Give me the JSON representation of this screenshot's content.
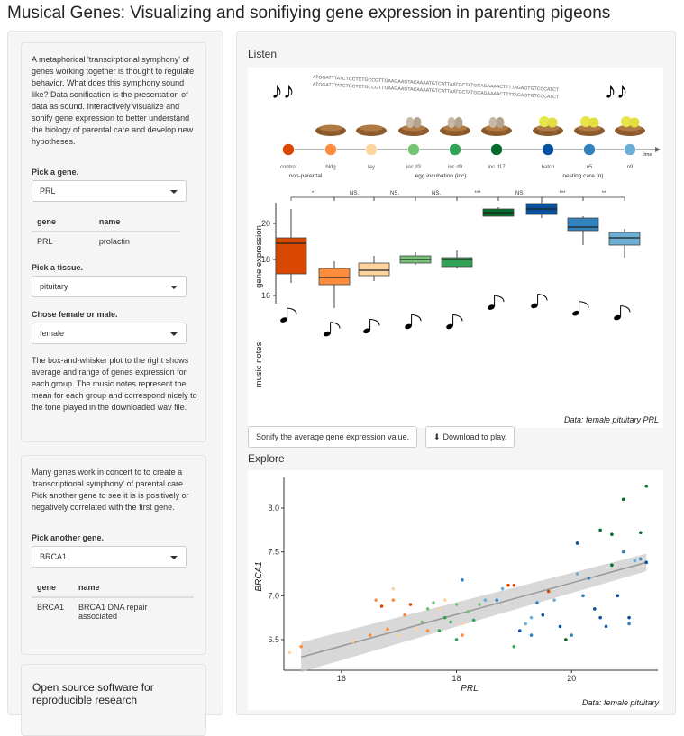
{
  "title": "Musical Genes: Visualizing and sonifiying gene expression in parenting pigeons",
  "sidebar": {
    "intro": "A metaphorical 'transcirptional symphony' of genes working together is thought to regulate behavior. What does this symphony sound like? Data sonification is the presentation of data as sound. Interactively visualize and sonify gene expression to better understand the biology of parental care and develop new hypotheses.",
    "gene_label": "Pick a gene.",
    "gene_value": "PRL",
    "gene_table": {
      "col_gene": "gene",
      "col_name": "name",
      "gene": "PRL",
      "name": "prolactin"
    },
    "tissue_label": "Pick a tissue.",
    "tissue_value": "pituitary",
    "sex_label": "Chose female or male.",
    "sex_value": "female",
    "description": "The box-and-whisker plot to the right shows average and range of genes expression for each group. The music notes represent the mean for each group and correspond nicely to the tone played in the downloaded wav file.",
    "second_intro": "Many genes work in concert to to create a 'transcriptional symphony' of parental care. Pick another gene to see it is is positively or negatively correlated with the first gene.",
    "another_label": "Pick another gene.",
    "another_value": "BRCA1",
    "another_table": {
      "col_gene": "gene",
      "col_name": "name",
      "gene": "BRCA1",
      "name": "BRCA1 DNA repair associated"
    },
    "open_source": "Open source software for reproducible research"
  },
  "main": {
    "listen_heading": "Listen",
    "sonify_button": "Sonify the average gene expression value.",
    "download_button": "Download to play.",
    "explore_heading": "Explore"
  },
  "timeline": {
    "dna_top": "ATGGATTTATCTGCTCTGCCGTTGAAGAAGTACAAAATGTCATTAATGCTATGCAGAAAACTTTTAGAGTGTCCCATCT",
    "dna_bottom": "ATGGATTTATCTGCTCTGCCGTTGAAGAAGTACAAAATGTCATTAATGCTATGCAGAAAACTTTTAGAGTGTCCCATCT",
    "stages": [
      "control",
      "bldg",
      "lay",
      "inc.d3",
      "inc.d9",
      "inc.d17",
      "hatch",
      "n5",
      "n9"
    ],
    "colors": [
      "#d94801",
      "#fd8d3c",
      "#fdd49e",
      "#74c476",
      "#31a354",
      "#006d2c",
      "#08519c",
      "#3182bd",
      "#6baed6"
    ],
    "phases": [
      "non-parental",
      "egg incubation (inc)",
      "nesting care (n)"
    ],
    "time_label": "time"
  },
  "boxplot": {
    "ylabel": "gene expression",
    "notes_label": "music notes",
    "caption": "Data: female pituitary PRL",
    "yticks": [
      16,
      18,
      20
    ],
    "sig": [
      "*",
      "NS.",
      "NS.",
      "NS.",
      "***",
      "NS.",
      "***",
      "**"
    ],
    "stats": [
      {
        "q1": 17.2,
        "med": 18.9,
        "q3": 19.2,
        "lo": 16.7,
        "hi": 20.8
      },
      {
        "q1": 16.6,
        "med": 17.0,
        "q3": 17.5,
        "lo": 15.3,
        "hi": 17.9
      },
      {
        "q1": 17.1,
        "med": 17.4,
        "q3": 17.8,
        "lo": 16.8,
        "hi": 18.2
      },
      {
        "q1": 17.8,
        "med": 18.0,
        "q3": 18.2,
        "lo": 17.7,
        "hi": 18.4
      },
      {
        "q1": 17.6,
        "med": 18.0,
        "q3": 18.1,
        "lo": 17.5,
        "hi": 18.5
      },
      {
        "q1": 20.4,
        "med": 20.6,
        "q3": 20.8,
        "lo": 20.4,
        "hi": 20.9
      },
      {
        "q1": 20.5,
        "med": 20.8,
        "q3": 21.1,
        "lo": 20.3,
        "hi": 21.3
      },
      {
        "q1": 19.6,
        "med": 19.8,
        "q3": 20.3,
        "lo": 18.8,
        "hi": 20.4
      },
      {
        "q1": 18.8,
        "med": 19.2,
        "q3": 19.5,
        "lo": 18.1,
        "hi": 19.7
      }
    ]
  },
  "chart_data": {
    "type": "scatter",
    "xlabel": "PRL",
    "ylabel": "BRCA1",
    "caption": "Data: female pituitary",
    "xlim": [
      15,
      21.5
    ],
    "ylim": [
      6.15,
      8.35
    ],
    "xticks": [
      16,
      18,
      20
    ],
    "yticks": [
      6.5,
      7.0,
      7.5,
      8.0
    ],
    "trend": {
      "x0": 15.3,
      "y0": 6.3,
      "x1": 21.3,
      "y1": 7.38
    },
    "points": [
      {
        "x": 15.1,
        "y": 6.35,
        "g": 2
      },
      {
        "x": 15.3,
        "y": 6.42,
        "g": 1
      },
      {
        "x": 16.2,
        "y": 6.48,
        "g": 2
      },
      {
        "x": 16.5,
        "y": 6.55,
        "g": 1
      },
      {
        "x": 16.6,
        "y": 6.95,
        "g": 1
      },
      {
        "x": 16.8,
        "y": 6.62,
        "g": 1
      },
      {
        "x": 16.7,
        "y": 6.88,
        "g": 0
      },
      {
        "x": 16.9,
        "y": 7.08,
        "g": 2
      },
      {
        "x": 16.9,
        "y": 6.95,
        "g": 1
      },
      {
        "x": 17.0,
        "y": 6.55,
        "g": 2
      },
      {
        "x": 17.1,
        "y": 6.78,
        "g": 1
      },
      {
        "x": 17.2,
        "y": 6.9,
        "g": 0
      },
      {
        "x": 17.3,
        "y": 6.62,
        "g": 2
      },
      {
        "x": 17.4,
        "y": 6.7,
        "g": 3
      },
      {
        "x": 17.5,
        "y": 6.85,
        "g": 3
      },
      {
        "x": 17.6,
        "y": 6.92,
        "g": 3
      },
      {
        "x": 17.7,
        "y": 6.85,
        "g": 2
      },
      {
        "x": 17.7,
        "y": 6.6,
        "g": 4
      },
      {
        "x": 17.8,
        "y": 6.75,
        "g": 4
      },
      {
        "x": 17.9,
        "y": 6.7,
        "g": 4
      },
      {
        "x": 18.0,
        "y": 6.9,
        "g": 3
      },
      {
        "x": 18.1,
        "y": 6.68,
        "g": 2
      },
      {
        "x": 18.1,
        "y": 6.55,
        "g": 1
      },
      {
        "x": 18.2,
        "y": 6.82,
        "g": 3
      },
      {
        "x": 18.0,
        "y": 6.5,
        "g": 4
      },
      {
        "x": 17.8,
        "y": 6.95,
        "g": 2
      },
      {
        "x": 17.5,
        "y": 6.6,
        "g": 1
      },
      {
        "x": 18.1,
        "y": 7.18,
        "g": 7
      },
      {
        "x": 18.3,
        "y": 6.72,
        "g": 4
      },
      {
        "x": 18.4,
        "y": 6.9,
        "g": 3
      },
      {
        "x": 18.5,
        "y": 6.95,
        "g": 8
      },
      {
        "x": 18.7,
        "y": 6.95,
        "g": 7
      },
      {
        "x": 18.8,
        "y": 7.08,
        "g": 8
      },
      {
        "x": 18.9,
        "y": 7.12,
        "g": 0
      },
      {
        "x": 19.0,
        "y": 7.12,
        "g": 0
      },
      {
        "x": 19.0,
        "y": 6.42,
        "g": 4
      },
      {
        "x": 19.1,
        "y": 6.6,
        "g": 6
      },
      {
        "x": 19.2,
        "y": 6.68,
        "g": 8
      },
      {
        "x": 19.3,
        "y": 6.75,
        "g": 8
      },
      {
        "x": 19.3,
        "y": 6.55,
        "g": 7
      },
      {
        "x": 19.4,
        "y": 6.92,
        "g": 7
      },
      {
        "x": 19.5,
        "y": 6.78,
        "g": 6
      },
      {
        "x": 19.6,
        "y": 7.05,
        "g": 0
      },
      {
        "x": 19.7,
        "y": 6.95,
        "g": 8
      },
      {
        "x": 19.8,
        "y": 6.65,
        "g": 6
      },
      {
        "x": 19.9,
        "y": 6.5,
        "g": 5
      },
      {
        "x": 20.0,
        "y": 6.55,
        "g": 7
      },
      {
        "x": 20.1,
        "y": 7.25,
        "g": 8
      },
      {
        "x": 20.2,
        "y": 7.0,
        "g": 7
      },
      {
        "x": 20.1,
        "y": 7.6,
        "g": 6
      },
      {
        "x": 20.3,
        "y": 7.2,
        "g": 7
      },
      {
        "x": 20.4,
        "y": 6.85,
        "g": 6
      },
      {
        "x": 20.5,
        "y": 6.75,
        "g": 6
      },
      {
        "x": 20.5,
        "y": 7.75,
        "g": 5
      },
      {
        "x": 20.6,
        "y": 6.65,
        "g": 6
      },
      {
        "x": 20.7,
        "y": 7.35,
        "g": 5
      },
      {
        "x": 20.8,
        "y": 7.0,
        "g": 6
      },
      {
        "x": 20.9,
        "y": 7.5,
        "g": 7
      },
      {
        "x": 20.9,
        "y": 8.1,
        "g": 5
      },
      {
        "x": 21.0,
        "y": 6.75,
        "g": 6
      },
      {
        "x": 21.1,
        "y": 7.4,
        "g": 8
      },
      {
        "x": 21.2,
        "y": 7.72,
        "g": 5
      },
      {
        "x": 21.2,
        "y": 7.42,
        "g": 7
      },
      {
        "x": 21.3,
        "y": 8.25,
        "g": 5
      },
      {
        "x": 21.3,
        "y": 7.38,
        "g": 6
      },
      {
        "x": 20.7,
        "y": 7.7,
        "g": 5
      },
      {
        "x": 21.0,
        "y": 6.68,
        "g": 7
      }
    ]
  }
}
